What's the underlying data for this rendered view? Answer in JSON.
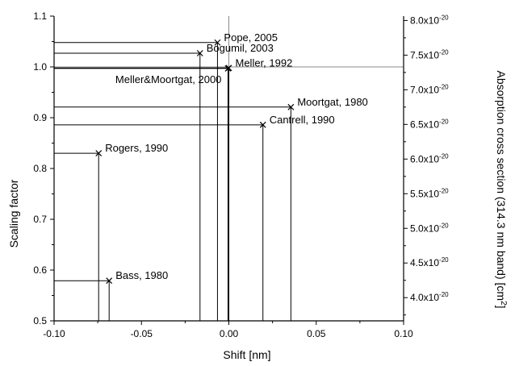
{
  "chart_data": {
    "type": "scatter",
    "title": "",
    "xlabel": "Shift [nm]",
    "ylabel": "Scaling factor",
    "y2label": "Absorption cross section (314.3 nm band) [cm",
    "y2label_sup": "2",
    "y2label_end": "]",
    "xlim": [
      -0.1,
      0.1
    ],
    "ylim": [
      0.5,
      1.1
    ],
    "x_ticks": [
      {
        "v": -0.1,
        "label": "-0.10"
      },
      {
        "v": -0.05,
        "label": "-0.05"
      },
      {
        "v": 0.0,
        "label": "0.00"
      },
      {
        "v": 0.05,
        "label": "0.05"
      },
      {
        "v": 0.1,
        "label": "0.10"
      }
    ],
    "y_ticks": [
      {
        "v": 0.5,
        "label": "0.5"
      },
      {
        "v": 0.6,
        "label": "0.6"
      },
      {
        "v": 0.7,
        "label": "0.7"
      },
      {
        "v": 0.8,
        "label": "0.8"
      },
      {
        "v": 0.9,
        "label": "0.9"
      },
      {
        "v": 1.0,
        "label": "1.0"
      },
      {
        "v": 1.1,
        "label": "1.1"
      }
    ],
    "y2_ticks": [
      {
        "v": 4.0,
        "mant": "4.0x10",
        "exp": "-20"
      },
      {
        "v": 4.5,
        "mant": "4.5x10",
        "exp": "-20"
      },
      {
        "v": 5.0,
        "mant": "5.0x10",
        "exp": "-20"
      },
      {
        "v": 5.5,
        "mant": "5.5x10",
        "exp": "-20"
      },
      {
        "v": 6.0,
        "mant": "6.0x10",
        "exp": "-20"
      },
      {
        "v": 6.5,
        "mant": "6.5x10",
        "exp": "-20"
      },
      {
        "v": 7.0,
        "mant": "7.0x10",
        "exp": "-20"
      },
      {
        "v": 7.5,
        "mant": "7.5x10",
        "exp": "-20"
      },
      {
        "v": 8.0,
        "mant": "8.0x10",
        "exp": "-20"
      }
    ],
    "y2_scale": {
      "y_at_ref": 1.0,
      "y2_ref": 7.33
    },
    "reference": {
      "x": 0.0,
      "y": 1.0
    },
    "points": [
      {
        "label": "Pope, 2005",
        "x": -0.0065,
        "y": 1.048,
        "label_pos": "right"
      },
      {
        "label": "Bogumil, 2003",
        "x": -0.0165,
        "y": 1.027,
        "label_pos": "right"
      },
      {
        "label": "Meller, 1992",
        "x": 0.0,
        "y": 0.998,
        "label_pos": "right"
      },
      {
        "label": "Meller&Moortgat, 2000",
        "x": -0.0005,
        "y": 0.997,
        "label_pos": "below-left"
      },
      {
        "label": "Moortgat, 1980",
        "x": 0.0355,
        "y": 0.921,
        "label_pos": "right"
      },
      {
        "label": "Cantrell, 1990",
        "x": 0.0195,
        "y": 0.886,
        "label_pos": "right"
      },
      {
        "label": "Rogers, 1990",
        "x": -0.0745,
        "y": 0.83,
        "label_pos": "right"
      },
      {
        "label": "Bass, 1980",
        "x": -0.0685,
        "y": 0.579,
        "label_pos": "right"
      }
    ]
  }
}
